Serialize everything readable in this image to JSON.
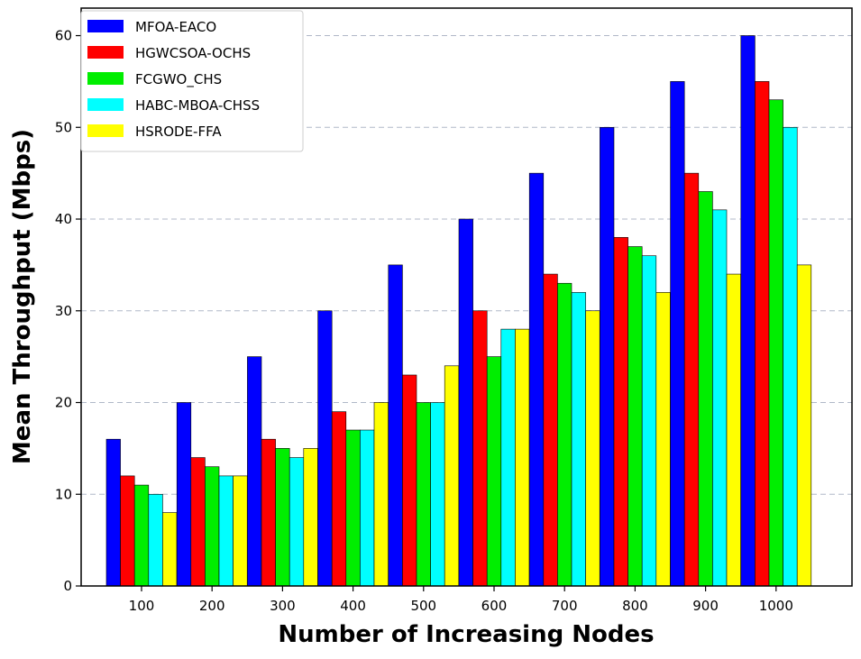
{
  "chart_data": {
    "type": "bar",
    "title": "",
    "xlabel": "Number of Increasing Nodes",
    "ylabel": "Mean Throughput (Mbps)",
    "ylim": [
      0,
      63
    ],
    "yticks": [
      0,
      10,
      20,
      30,
      40,
      50,
      60
    ],
    "grid": "horizontal dashed",
    "legend_position": "top-left",
    "categories": [
      "100",
      "200",
      "300",
      "400",
      "500",
      "600",
      "700",
      "800",
      "900",
      "1000"
    ],
    "series": [
      {
        "name": "MFOA-EACO",
        "color": "#0000ff",
        "values": [
          16,
          20,
          25,
          30,
          35,
          40,
          45,
          50,
          55,
          60
        ]
      },
      {
        "name": "HGWCSOA-OCHS",
        "color": "#ff0000",
        "values": [
          12,
          14,
          16,
          19,
          23,
          30,
          34,
          38,
          45,
          55
        ]
      },
      {
        "name": "FCGWO_CHS",
        "color": "#00ee00",
        "values": [
          11,
          13,
          15,
          17,
          20,
          25,
          33,
          37,
          43,
          53
        ]
      },
      {
        "name": "HABC-MBOA-CHSS",
        "color": "#00ffff",
        "values": [
          10,
          12,
          14,
          17,
          20,
          28,
          32,
          36,
          41,
          50
        ]
      },
      {
        "name": "HSRODE-FFA",
        "color": "#ffff00",
        "values": [
          8,
          12,
          15,
          20,
          24,
          28,
          30,
          32,
          34,
          35
        ]
      }
    ]
  }
}
